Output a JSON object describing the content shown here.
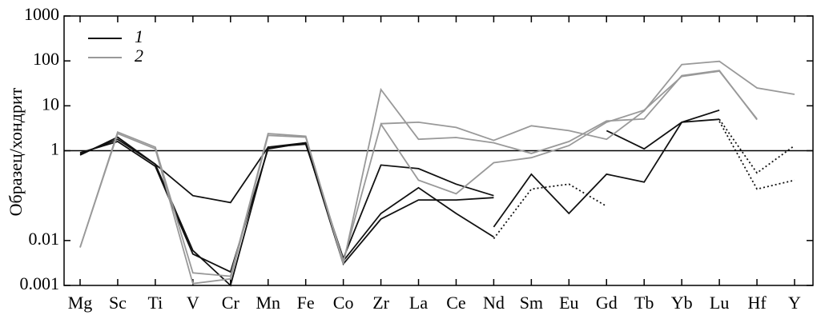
{
  "chart_data": {
    "type": "line",
    "ylabel": "Образец/хондрит",
    "categories": [
      "Mg",
      "Sc",
      "Ti",
      "V",
      "Cr",
      "Mn",
      "Fe",
      "Co",
      "Zr",
      "La",
      "Ce",
      "Nd",
      "Sm",
      "Eu",
      "Gd",
      "Tb",
      "Yb",
      "Lu",
      "Hf",
      "Y"
    ],
    "log_scale": true,
    "ylim": [
      0.001,
      1000
    ],
    "yticks": [
      1000,
      100,
      10,
      1,
      0.01,
      0.001
    ],
    "hline": 1,
    "legend": "upper left",
    "series": [
      {
        "name": "1",
        "color": "#111111",
        "values": [
          0.8,
          2.0,
          0.5,
          0.1,
          0.07,
          1.2,
          1.4,
          0.004,
          0.48,
          0.4,
          0.18,
          0.1,
          null,
          null,
          null,
          null,
          null,
          null,
          null,
          null
        ]
      },
      {
        "color": "#111111",
        "values": [
          0.9,
          1.6,
          0.45,
          0.005,
          0.002,
          1.1,
          1.5,
          0.0035,
          0.04,
          0.15,
          0.04,
          0.012,
          null,
          null,
          null,
          null,
          null,
          null,
          null,
          null
        ]
      },
      {
        "color": "#111111",
        "values": [
          0.85,
          1.8,
          0.5,
          0.006,
          0.001,
          1.2,
          1.5,
          0.003,
          0.03,
          0.08,
          0.08,
          0.09,
          null,
          null,
          null,
          null,
          null,
          null,
          null,
          null
        ]
      },
      {
        "color": "#111111",
        "values": [
          null,
          null,
          null,
          null,
          null,
          null,
          null,
          null,
          null,
          null,
          null,
          0.02,
          0.3,
          0.04,
          0.3,
          0.2,
          4.3,
          8,
          null,
          null
        ]
      },
      {
        "color": "#111111",
        "values": [
          null,
          null,
          null,
          null,
          null,
          null,
          null,
          null,
          null,
          null,
          null,
          null,
          null,
          null,
          2.8,
          1.1,
          4.3,
          5,
          null,
          null
        ]
      },
      {
        "color": "#111111",
        "dotted": true,
        "values": [
          null,
          null,
          null,
          null,
          null,
          null,
          null,
          null,
          null,
          null,
          null,
          0.011,
          0.14,
          0.18,
          0.058,
          null,
          null,
          null,
          null,
          null
        ]
      },
      {
        "color": "#111111",
        "dotted": true,
        "values": [
          null,
          null,
          null,
          null,
          null,
          null,
          null,
          null,
          null,
          null,
          null,
          null,
          null,
          null,
          null,
          null,
          null,
          5,
          0.32,
          1.3
        ]
      },
      {
        "color": "#111111",
        "dotted": true,
        "values": [
          null,
          null,
          null,
          null,
          null,
          null,
          null,
          null,
          null,
          null,
          null,
          null,
          null,
          null,
          null,
          null,
          null,
          4.5,
          0.14,
          0.22
        ]
      },
      {
        "name": "2",
        "color": "#999999",
        "values": [
          0.007,
          2.6,
          1.2,
          0.0019,
          0.0016,
          2.4,
          2.1,
          0.003,
          23,
          1.8,
          1.97,
          1.5,
          0.87,
          1.6,
          4.6,
          5.1,
          47,
          61,
          4.9,
          null
        ]
      },
      {
        "color": "#999999",
        "values": [
          null,
          null,
          null,
          null,
          null,
          null,
          null,
          null,
          4,
          4.3,
          3.3,
          1.7,
          3.6,
          2.8,
          1.8,
          7.7,
          83,
          98,
          25,
          18
        ]
      },
      {
        "color": "#999999",
        "values": [
          0.007,
          2.4,
          1.1,
          0.0011,
          0.0014,
          2.2,
          2.0,
          0.0035,
          3.9,
          0.22,
          0.11,
          0.54,
          0.7,
          1.3,
          4.3,
          8,
          45,
          59,
          5.1,
          null
        ]
      }
    ]
  }
}
